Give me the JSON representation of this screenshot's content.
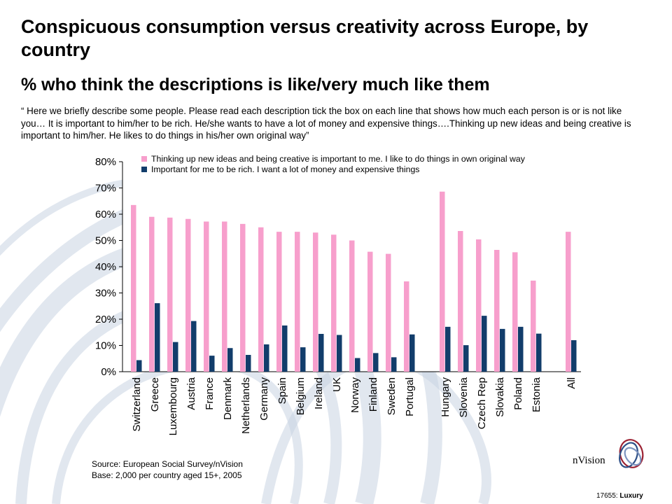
{
  "header": {
    "title": "Conspicuous consumption versus creativity across Europe, by country",
    "subtitle": "% who think the descriptions is like/very much like  them",
    "quote": "“ Here we briefly describe some people. Please read each description tick the box on each line that shows how much each person is or is not like you… It is important to him/her to be rich. He/she wants to have a lot of money and expensive things….Thinking up new ideas and being creative is important to him/her. He likes to do things in his/her own original way”"
  },
  "chart_data": {
    "type": "bar",
    "categories": [
      "Switzerland",
      "Greece",
      "Luxembourg",
      "Austria",
      "France",
      "Denmark",
      "Netherlands",
      "Germany",
      "Spain",
      "Belgium",
      "Ireland",
      "UK",
      "Norway",
      "Finland",
      "Sweden",
      "Portugal",
      "Hungary",
      "Slovenia",
      "Czech Rep",
      "Slovakia",
      "Poland",
      "Estonia",
      "All"
    ],
    "groups": [
      [
        0,
        15
      ],
      [
        16,
        21
      ],
      [
        22,
        22
      ]
    ],
    "series": [
      {
        "name": "Thinking up new ideas and being creative is important to me. I like to do things in own original way",
        "color": "#f79fcc",
        "values": [
          63.5,
          59,
          58.7,
          58.2,
          57.2,
          57.2,
          56.3,
          55,
          53.3,
          53.3,
          53,
          52.2,
          50,
          45.7,
          44.9,
          34.4,
          68.6,
          53.6,
          50.4,
          46.4,
          45.5,
          34.7,
          53.3
        ]
      },
      {
        "name": "Important for me to be rich. I want a lot of money and expensive things",
        "color": "#123d6b",
        "values": [
          4.4,
          26.1,
          11.3,
          19.3,
          6.1,
          9,
          6.4,
          10.4,
          17.6,
          9.3,
          14.4,
          14,
          5.2,
          7.1,
          5.5,
          14.2,
          17.1,
          10.1,
          21.3,
          16.3,
          17.1,
          14.5,
          12
        ]
      }
    ],
    "ylim": [
      0,
      80
    ],
    "yticks": [
      "0%",
      "10%",
      "20%",
      "30%",
      "40%",
      "50%",
      "60%",
      "70%",
      "80%"
    ],
    "legend_position": "top-left"
  },
  "source": {
    "line1": "Source: European Social Survey/nVision",
    "line2": "Base: 2,000 per country aged 15+, 2005"
  },
  "logo": {
    "text": "nVision"
  },
  "footer": {
    "code": "17655:",
    "tag": "Luxury"
  }
}
